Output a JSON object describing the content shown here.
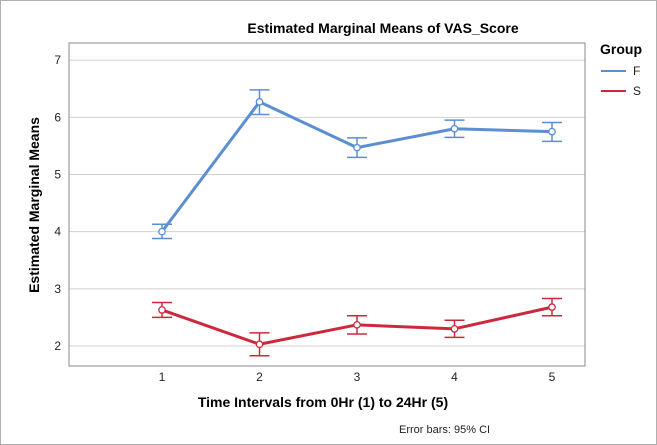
{
  "chart_data": {
    "type": "line",
    "title": "Estimated Marginal Means of VAS_Score",
    "xlabel": "Time Intervals from 0Hr (1) to 24Hr (5)",
    "ylabel": "Estimated Marginal Means",
    "categories": [
      "1",
      "2",
      "3",
      "4",
      "5"
    ],
    "ylim": [
      1.65,
      7.3
    ],
    "yticks": [
      "2",
      "3",
      "4",
      "5",
      "6",
      "7"
    ],
    "grid": true,
    "legend": {
      "title": "Group",
      "position": "top-right"
    },
    "footnote": "Error bars: 95% CI",
    "series": [
      {
        "name": "F",
        "color": "#5b8fd0",
        "values": [
          4.0,
          6.27,
          5.47,
          5.8,
          5.75
        ],
        "ci_low": [
          3.88,
          6.05,
          5.3,
          5.65,
          5.58
        ],
        "ci_high": [
          4.13,
          6.48,
          5.64,
          5.95,
          5.91
        ]
      },
      {
        "name": "S",
        "color": "#cc2a3c",
        "values": [
          2.63,
          2.03,
          2.37,
          2.3,
          2.68
        ],
        "ci_low": [
          2.5,
          1.83,
          2.21,
          2.15,
          2.53
        ],
        "ci_high": [
          2.76,
          2.23,
          2.53,
          2.45,
          2.83
        ]
      }
    ]
  }
}
